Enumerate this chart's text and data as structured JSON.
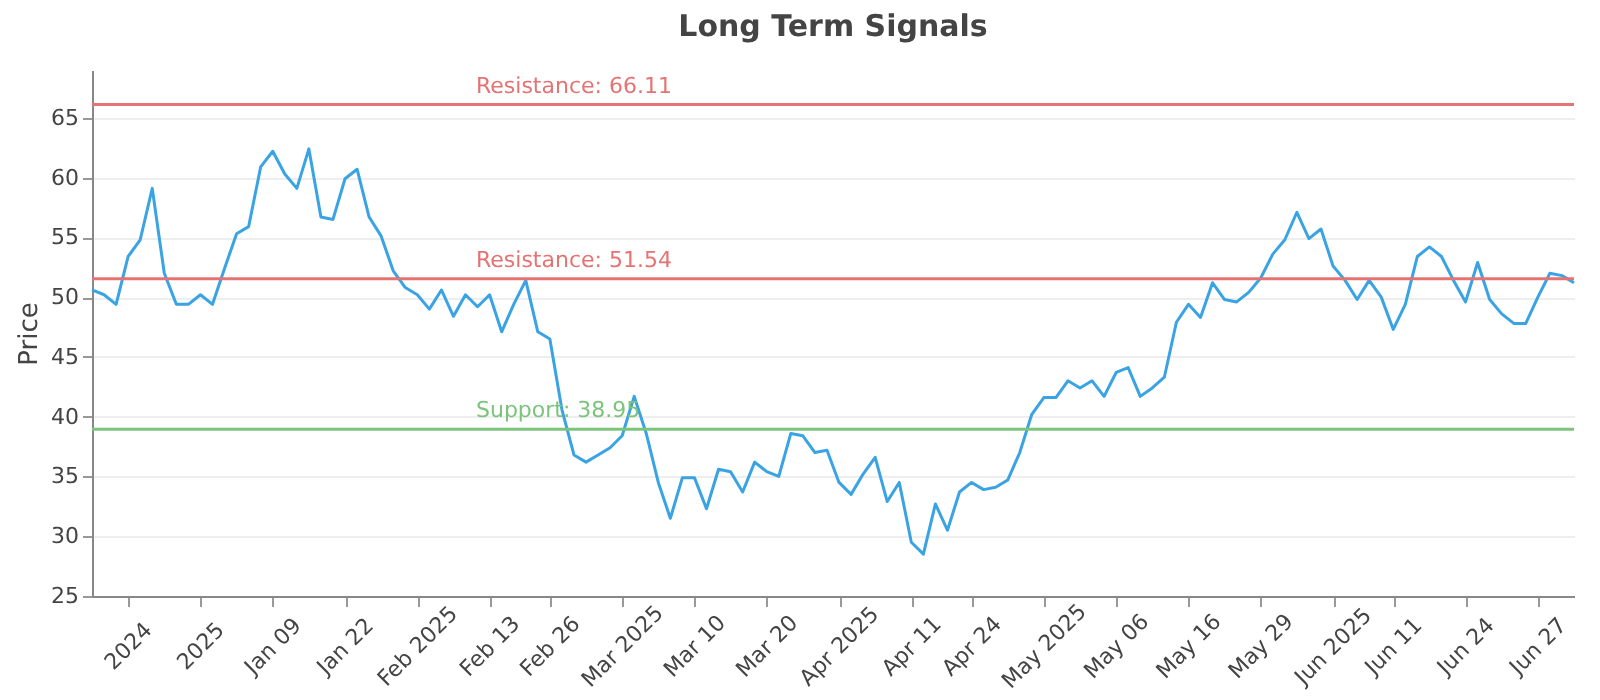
{
  "chart_data": {
    "type": "line",
    "title": "Long Term Signals",
    "ylabel": "Price",
    "categories": [
      null,
      null,
      null,
      "2024",
      null,
      null,
      null,
      null,
      null,
      "2025",
      null,
      null,
      null,
      null,
      null,
      "Jan 09",
      null,
      null,
      null,
      null,
      null,
      "Jan 22",
      null,
      null,
      null,
      null,
      null,
      "Feb 2025",
      null,
      null,
      null,
      null,
      null,
      "Feb 13",
      null,
      null,
      null,
      null,
      "Feb 26",
      null,
      null,
      null,
      null,
      null,
      "Mar 2025",
      null,
      null,
      null,
      null,
      null,
      "Mar 10",
      null,
      null,
      null,
      null,
      null,
      "Mar 20",
      null,
      null,
      null,
      null,
      null,
      "Apr 2025",
      null,
      null,
      null,
      null,
      null,
      "Apr 11",
      null,
      null,
      null,
      null,
      "Apr 24",
      null,
      null,
      null,
      null,
      null,
      "May 2025",
      null,
      null,
      null,
      null,
      null,
      "May 06",
      null,
      null,
      null,
      null,
      null,
      "May 16",
      null,
      null,
      null,
      null,
      null,
      "May 29",
      null,
      null,
      null,
      null,
      null,
      "Jun 2025",
      null,
      null,
      null,
      null,
      "Jun 11",
      null,
      null,
      null,
      null,
      null,
      "Jun 24",
      null,
      null,
      null,
      null,
      null,
      "Jun 27",
      null,
      null,
      null
    ],
    "series": [
      {
        "color": "#3aa3e3",
        "values": [
          50.6,
          50.2,
          49.4,
          53.4,
          54.8,
          59.1,
          52.0,
          49.4,
          49.4,
          50.2,
          49.4,
          52.4,
          55.3,
          55.9,
          60.9,
          62.2,
          60.3,
          59.1,
          62.4,
          56.7,
          56.5,
          59.9,
          60.7,
          56.7,
          55.1,
          52.2,
          50.8,
          50.2,
          49.0,
          50.6,
          48.4,
          50.2,
          49.2,
          50.2,
          47.1,
          49.4,
          51.4,
          47.1,
          46.5,
          40.6,
          36.8,
          36.2,
          36.8,
          37.4,
          38.4,
          41.7,
          38.6,
          34.5,
          31.5,
          34.9,
          34.9,
          32.3,
          35.6,
          35.4,
          33.7,
          36.2,
          35.4,
          35.0,
          38.6,
          38.4,
          37.0,
          37.2,
          34.5,
          33.5,
          35.2,
          36.6,
          32.9,
          34.5,
          29.5,
          28.5,
          32.7,
          30.5,
          33.7,
          34.5,
          33.9,
          34.1,
          34.7,
          37.0,
          40.2,
          41.6,
          41.6,
          43.0,
          42.4,
          43.0,
          41.7,
          43.7,
          44.1,
          41.7,
          42.4,
          43.3,
          47.9,
          49.4,
          48.3,
          51.2,
          49.8,
          49.6,
          50.4,
          51.6,
          53.6,
          54.8,
          57.1,
          54.9,
          55.7,
          52.6,
          51.4,
          49.8,
          51.4,
          50.0,
          47.3,
          49.4,
          53.4,
          54.2,
          53.4,
          51.4,
          49.6,
          52.9,
          49.8,
          48.6,
          47.8,
          47.8,
          50.0,
          52.0,
          51.8,
          51.2
        ]
      }
    ],
    "ylim": [
      25,
      69
    ],
    "yticks": [
      25,
      30,
      35,
      40,
      45,
      50,
      55,
      60,
      65
    ],
    "grid": "y",
    "marker": "none",
    "line_style": "solid",
    "ref_lines": [
      {
        "axis": "y",
        "value": 66.11,
        "label": "Resistance: 66.11",
        "color": "#e57373"
      },
      {
        "axis": "y",
        "value": 51.54,
        "label": "Resistance: 51.54",
        "color": "#e57373"
      },
      {
        "axis": "y",
        "value": 38.95,
        "label": "Support: 38.95",
        "color": "#7cc47c"
      }
    ]
  }
}
